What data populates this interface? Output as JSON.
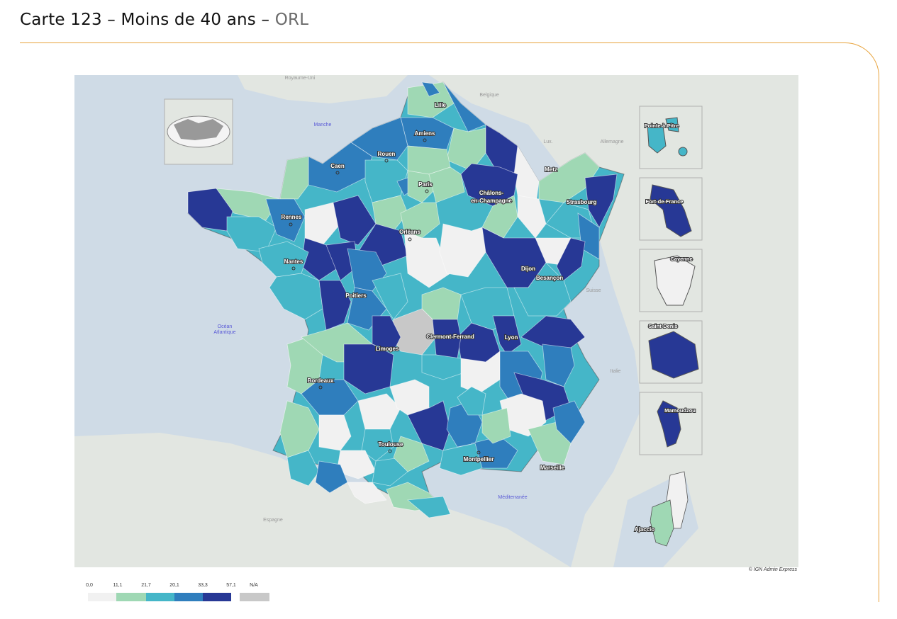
{
  "title": {
    "main": "Carte 123 – Moins de 40 ans – ",
    "specialty": "ORL"
  },
  "credit": "© IGN Admin Express",
  "colors": {
    "sea": "#cfdbe6",
    "land_other": "#e2e6e1",
    "accent_line": "#e8a33c",
    "class_0": "#f1f1f1",
    "class_1": "#9fd8b4",
    "class_2": "#45b6c8",
    "class_3": "#2f7ebd",
    "class_4": "#273895",
    "na": "#c8c8c8"
  },
  "legend": {
    "breaks": [
      "0,0",
      "11,1",
      "21,7",
      "20,1",
      "33,3",
      "57,1"
    ],
    "na_label": "N/A",
    "classes": [
      {
        "from": "0,0",
        "to": "11,1",
        "color": "#f1f1f1"
      },
      {
        "from": "11,1",
        "to": "21,7",
        "color": "#9fd8b4"
      },
      {
        "from": "21,7",
        "to": "20,1",
        "color": "#45b6c8"
      },
      {
        "from": "20,1",
        "to": "33,3",
        "color": "#2f7ebd"
      },
      {
        "from": "33,3",
        "to": "57,1",
        "color": "#273895"
      }
    ]
  },
  "sea_labels": [
    "Manche",
    "Océan",
    "Atlantique",
    "Méditerranée"
  ],
  "country_labels": [
    "Royaume-Uni",
    "Belgique",
    "Lux.",
    "Allemagne",
    "Suisse",
    "Italie",
    "Espagne"
  ],
  "cities": [
    "Lille",
    "Amiens",
    "Rouen",
    "Caen",
    "Paris",
    "Châlons-",
    "en-Champagne",
    "Metz",
    "Strasbourg",
    "Rennes",
    "Orléans",
    "Nantes",
    "Dijon",
    "Besançon",
    "Poitiers",
    "Limoges",
    "Clermont-Ferrand",
    "Lyon",
    "Bordeaux",
    "Toulouse",
    "Montpellier",
    "Marseille",
    "Ajaccio"
  ],
  "overseas": [
    "Pointe-à-Pitre",
    "Fort-de-France",
    "Cayenne",
    "Saint-Denis",
    "Mamoudzou"
  ]
}
